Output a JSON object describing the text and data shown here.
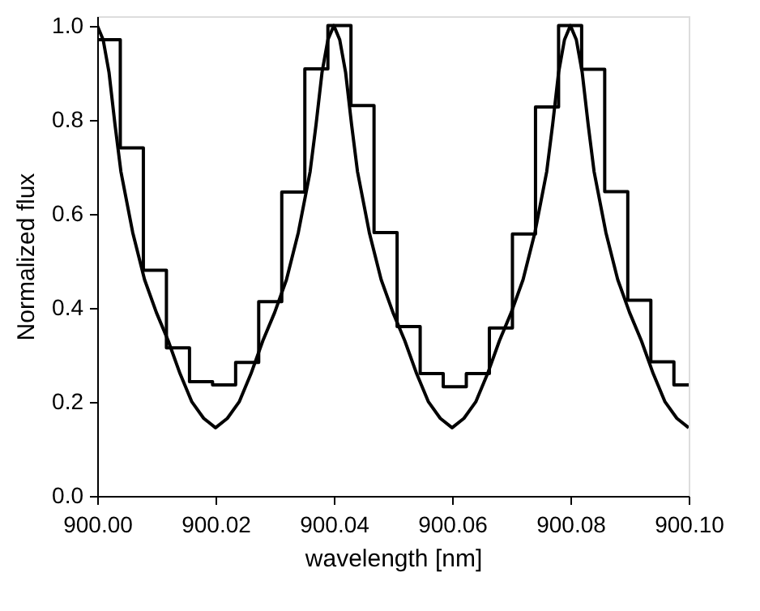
{
  "chart_data": {
    "type": "line",
    "xlabel": "wavelength [nm]",
    "ylabel": "Normalized flux",
    "xlim": [
      900.0,
      900.1
    ],
    "ylim": [
      0,
      1.02
    ],
    "xticks": [
      {
        "value": 900.0,
        "label": "900.00"
      },
      {
        "value": 900.02,
        "label": "900.02"
      },
      {
        "value": 900.04,
        "label": "900.04"
      },
      {
        "value": 900.06,
        "label": "900.06"
      },
      {
        "value": 900.08,
        "label": "900.08"
      },
      {
        "value": 900.1,
        "label": "900.10"
      }
    ],
    "yticks": [
      {
        "value": 0,
        "label": "0.0"
      },
      {
        "value": 0.2,
        "label": "0.2"
      },
      {
        "value": 0.4,
        "label": "0.4"
      },
      {
        "value": 0.6,
        "label": "0.6"
      },
      {
        "value": 0.8,
        "label": "0.8"
      },
      {
        "value": 1.0,
        "label": "1.0"
      }
    ],
    "grid": false,
    "series": [
      {
        "type": "step",
        "color": "#000000",
        "x": [
          900.0,
          900.0039,
          900.0078,
          900.0117,
          900.0156,
          900.0195,
          900.0234,
          900.0273,
          900.0312,
          900.0351,
          900.039,
          900.0429,
          900.0468,
          900.0507,
          900.0546,
          900.0585,
          900.0624,
          900.0663,
          900.0702,
          900.0741,
          900.078,
          900.0819,
          900.0858,
          900.0897,
          900.0936,
          900.0975,
          900.1
        ],
        "values": [
          0.97,
          0.74,
          0.48,
          0.315,
          0.243,
          0.236,
          0.284,
          0.413,
          0.646,
          0.908,
          1.0,
          0.83,
          0.56,
          0.36,
          0.26,
          0.232,
          0.26,
          0.357,
          0.557,
          0.827,
          1.0,
          0.907,
          0.647,
          0.416,
          0.285,
          0.236,
          0.236
        ]
      },
      {
        "color": "#000000",
        "x": [
          900.0,
          900.001,
          900.002,
          900.003,
          900.004,
          900.006,
          900.008,
          900.01,
          900.012,
          900.014,
          900.016,
          900.018,
          900.02,
          900.022,
          900.024,
          900.026,
          900.028,
          900.03,
          900.032,
          900.034,
          900.036,
          900.037,
          900.038,
          900.039,
          900.04,
          900.041,
          900.042,
          900.043,
          900.044,
          900.046,
          900.048,
          900.05,
          900.052,
          900.054,
          900.056,
          900.058,
          900.06,
          900.062,
          900.064,
          900.066,
          900.068,
          900.07,
          900.072,
          900.074,
          900.076,
          900.077,
          900.078,
          900.079,
          900.08,
          900.081,
          900.082,
          900.083,
          900.084,
          900.086,
          900.088,
          900.09,
          900.092,
          900.094,
          900.096,
          900.098,
          900.1
        ],
        "values": [
          1.0,
          0.97,
          0.9,
          0.79,
          0.69,
          0.56,
          0.46,
          0.39,
          0.33,
          0.26,
          0.2,
          0.165,
          0.145,
          0.165,
          0.2,
          0.26,
          0.33,
          0.39,
          0.46,
          0.56,
          0.69,
          0.79,
          0.9,
          0.97,
          1.0,
          0.97,
          0.9,
          0.79,
          0.69,
          0.56,
          0.46,
          0.39,
          0.33,
          0.26,
          0.2,
          0.165,
          0.145,
          0.165,
          0.2,
          0.26,
          0.33,
          0.39,
          0.46,
          0.56,
          0.69,
          0.79,
          0.9,
          0.97,
          1.0,
          0.97,
          0.9,
          0.79,
          0.69,
          0.56,
          0.46,
          0.39,
          0.33,
          0.26,
          0.2,
          0.165,
          0.145
        ]
      }
    ]
  }
}
